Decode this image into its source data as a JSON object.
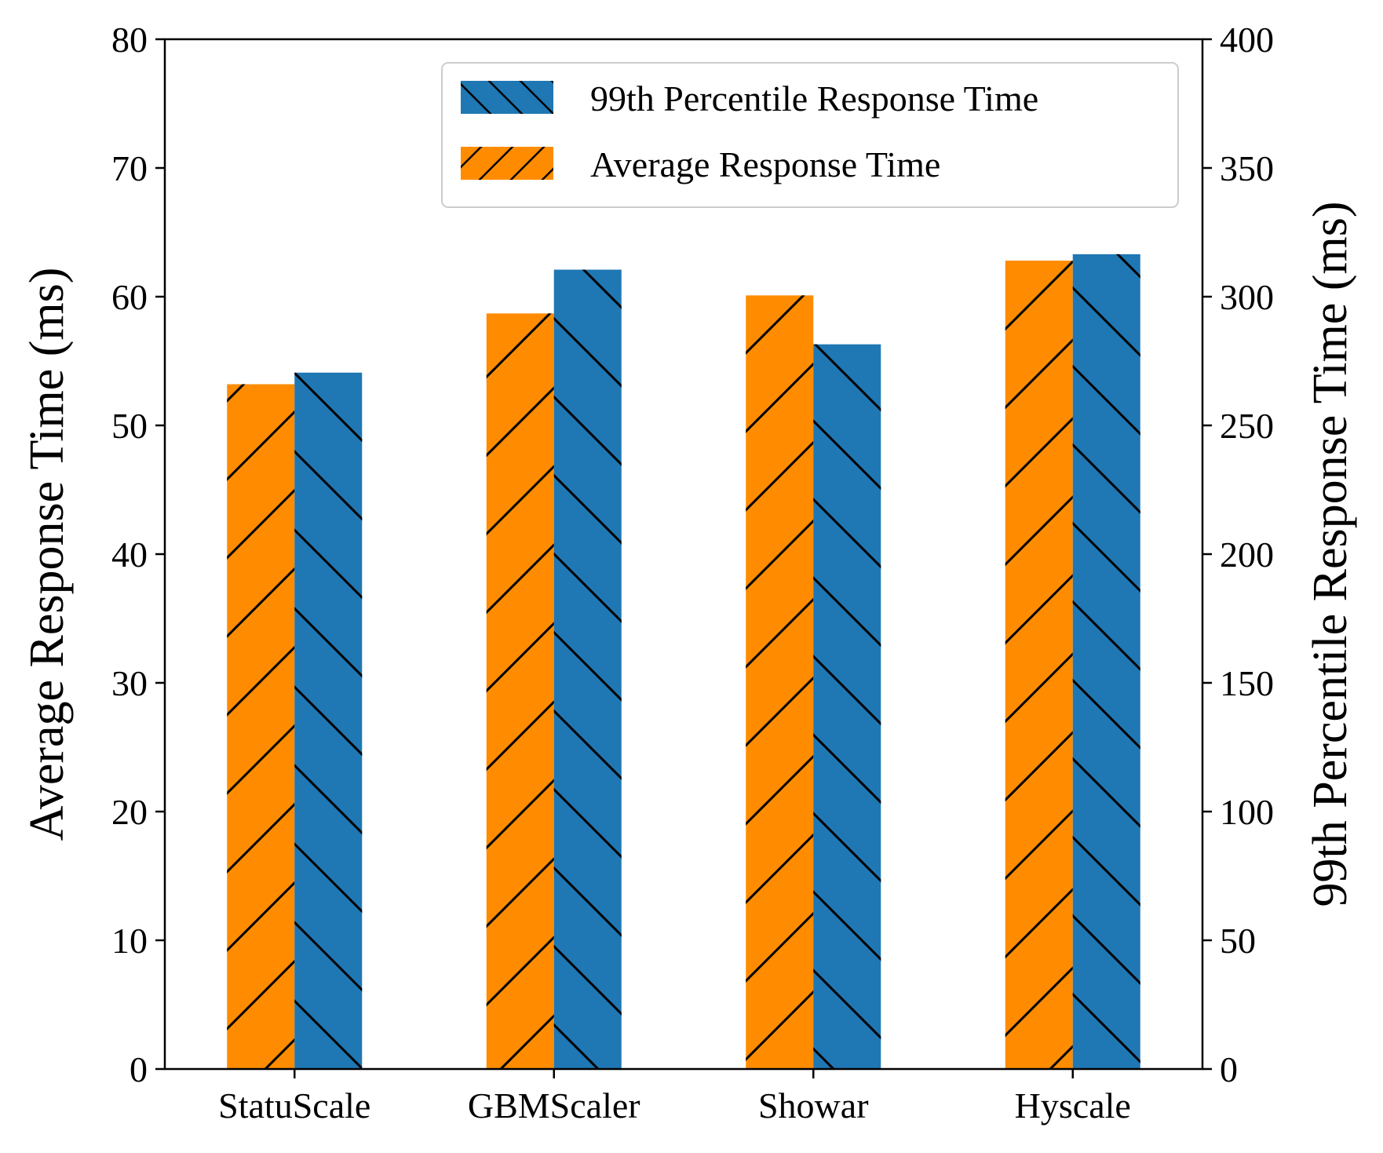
{
  "chart_data": {
    "type": "bar",
    "categories": [
      "StatuScale",
      "GBMScaler",
      "Showar",
      "Hyscale"
    ],
    "series": [
      {
        "name": "Average Response Time",
        "axis": "left",
        "color": "#FF8C00",
        "hatch": "/",
        "values": [
          53.2,
          58.7,
          60.1,
          62.8
        ]
      },
      {
        "name": "99th Percentile Response Time",
        "axis": "right",
        "color": "#1F77B4",
        "hatch": "\\",
        "values": [
          270.5,
          310.5,
          281.5,
          316.5
        ]
      }
    ],
    "left_axis": {
      "label": "Average Response Time (ms)",
      "ylim": [
        0,
        80
      ],
      "ticks": [
        0,
        10,
        20,
        30,
        40,
        50,
        60,
        70,
        80
      ]
    },
    "right_axis": {
      "label": "99th Percentile Response Time (ms)",
      "ylim": [
        0,
        400
      ],
      "ticks": [
        0,
        50,
        100,
        150,
        200,
        250,
        300,
        350,
        400
      ]
    },
    "legend": {
      "placement": "top-right",
      "entries": [
        "99th Percentile Response Time",
        "Average Response Time"
      ]
    },
    "grid": false
  }
}
